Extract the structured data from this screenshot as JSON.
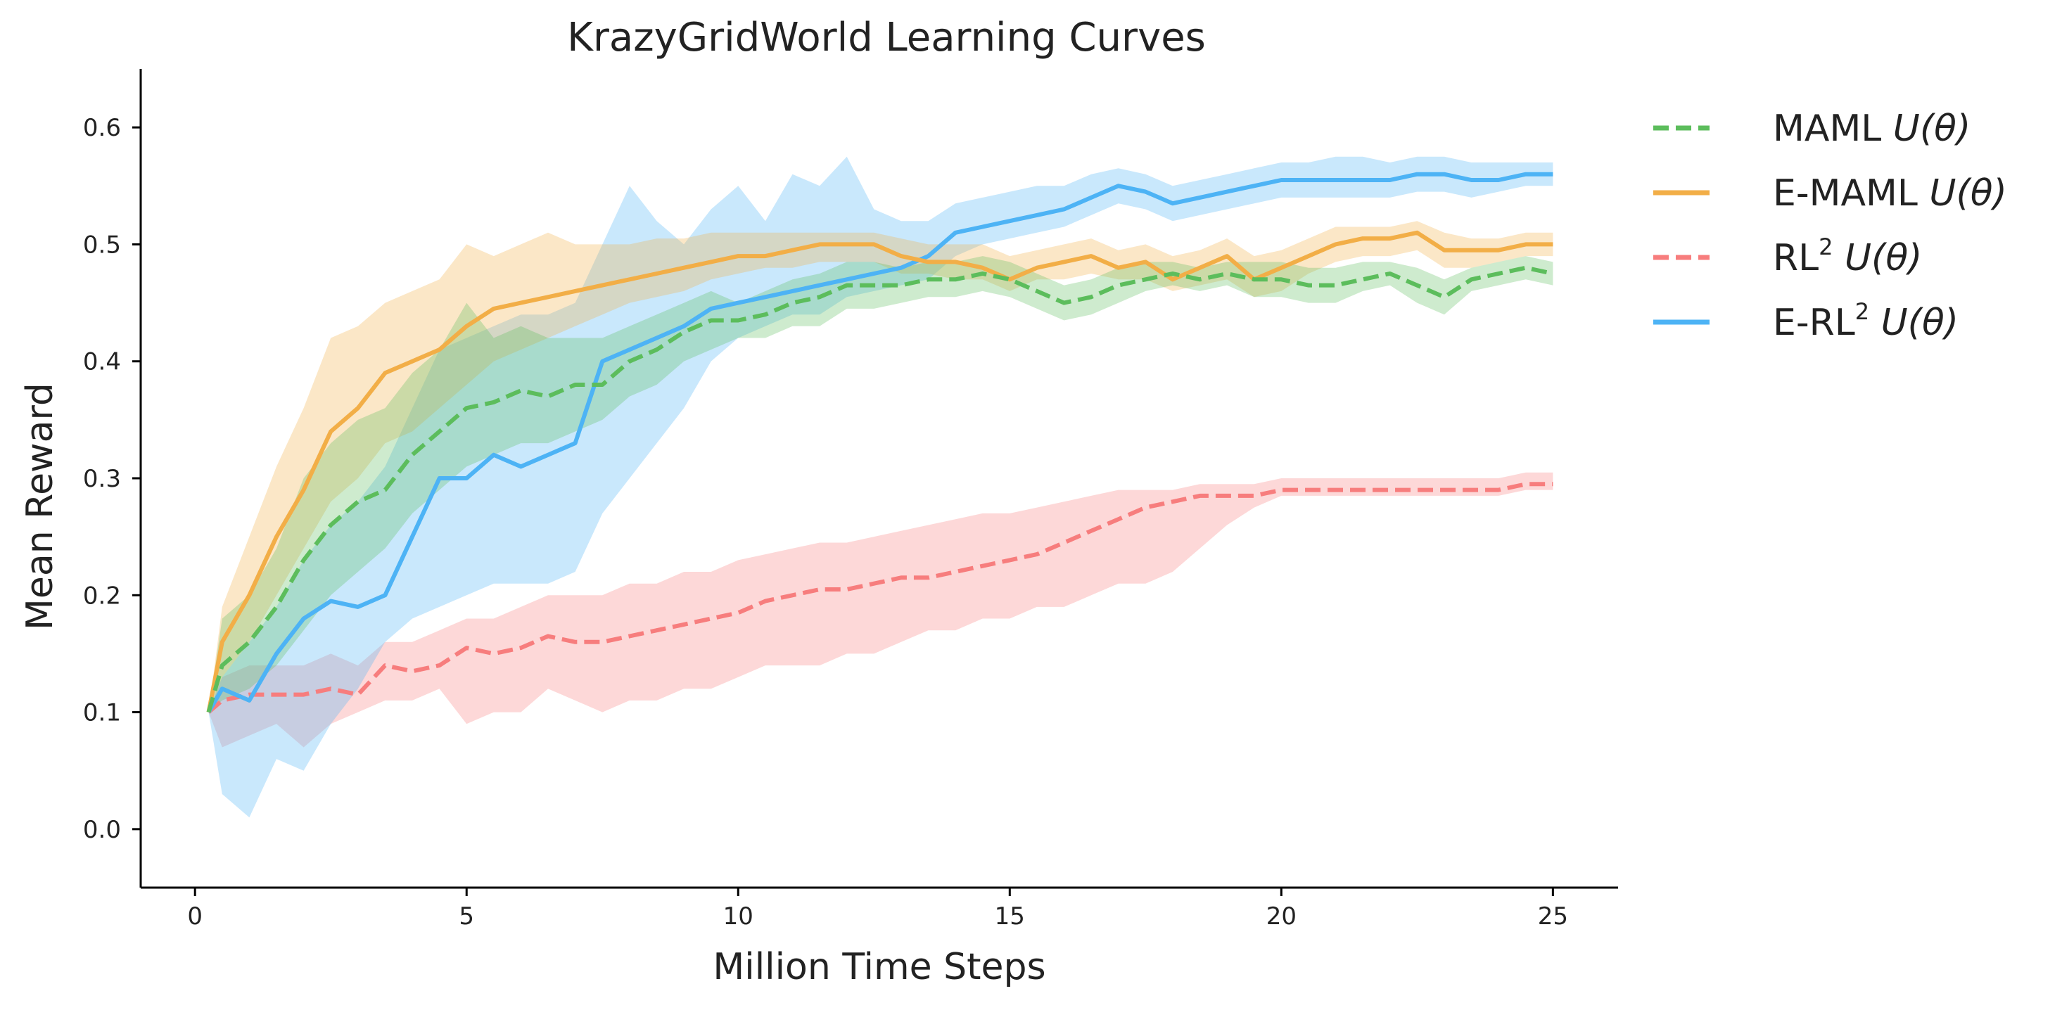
{
  "chart_data": {
    "type": "line",
    "title": "KrazyGridWorld Learning Curves",
    "xlabel": "Million Time Steps",
    "ylabel": "Mean Reward",
    "xlim": [
      -1,
      26.2
    ],
    "ylim": [
      -0.05,
      0.65
    ],
    "xticks": [
      0,
      5,
      10,
      15,
      20,
      25
    ],
    "yticks": [
      0.0,
      0.1,
      0.2,
      0.3,
      0.4,
      0.5,
      0.6
    ],
    "legend_position": "outside-top-right",
    "grid": false,
    "x": [
      0.25,
      0.5,
      1,
      1.5,
      2,
      2.5,
      3,
      3.5,
      4,
      4.5,
      5,
      5.5,
      6,
      6.5,
      7,
      7.5,
      8,
      8.5,
      9,
      9.5,
      10,
      10.5,
      11,
      11.5,
      12,
      12.5,
      13,
      13.5,
      14,
      14.5,
      15,
      15.5,
      16,
      16.5,
      17,
      17.5,
      18,
      18.5,
      19,
      19.5,
      20,
      20.5,
      21,
      21.5,
      22,
      22.5,
      23,
      23.5,
      24,
      24.5,
      25
    ],
    "series": [
      {
        "name": "MAML",
        "sup": "",
        "theta": "U(θ)",
        "color": "#5cbd5c",
        "dash": "dashed",
        "mean": [
          0.1,
          0.14,
          0.16,
          0.19,
          0.23,
          0.26,
          0.28,
          0.29,
          0.32,
          0.34,
          0.36,
          0.365,
          0.375,
          0.37,
          0.38,
          0.38,
          0.4,
          0.41,
          0.425,
          0.435,
          0.435,
          0.44,
          0.45,
          0.455,
          0.465,
          0.465,
          0.465,
          0.47,
          0.47,
          0.475,
          0.47,
          0.46,
          0.45,
          0.455,
          0.465,
          0.47,
          0.475,
          0.47,
          0.475,
          0.47,
          0.47,
          0.465,
          0.465,
          0.47,
          0.475,
          0.465,
          0.455,
          0.47,
          0.475,
          0.48,
          0.475
        ],
        "lower": [
          0.1,
          0.11,
          0.12,
          0.14,
          0.17,
          0.2,
          0.22,
          0.24,
          0.27,
          0.29,
          0.31,
          0.32,
          0.33,
          0.33,
          0.34,
          0.35,
          0.37,
          0.38,
          0.4,
          0.41,
          0.42,
          0.42,
          0.43,
          0.43,
          0.445,
          0.445,
          0.45,
          0.455,
          0.455,
          0.46,
          0.455,
          0.445,
          0.435,
          0.44,
          0.45,
          0.46,
          0.465,
          0.46,
          0.465,
          0.455,
          0.455,
          0.45,
          0.45,
          0.46,
          0.465,
          0.45,
          0.44,
          0.46,
          0.465,
          0.47,
          0.465
        ],
        "upper": [
          0.1,
          0.18,
          0.2,
          0.24,
          0.3,
          0.33,
          0.35,
          0.36,
          0.39,
          0.41,
          0.45,
          0.42,
          0.43,
          0.42,
          0.42,
          0.42,
          0.43,
          0.44,
          0.45,
          0.46,
          0.45,
          0.46,
          0.47,
          0.475,
          0.485,
          0.485,
          0.48,
          0.485,
          0.485,
          0.49,
          0.485,
          0.475,
          0.465,
          0.47,
          0.48,
          0.485,
          0.485,
          0.48,
          0.485,
          0.485,
          0.485,
          0.48,
          0.48,
          0.485,
          0.485,
          0.48,
          0.47,
          0.48,
          0.485,
          0.49,
          0.485
        ]
      },
      {
        "name": "E-MAML",
        "sup": "",
        "theta": "U(θ)",
        "color": "#f2ae47",
        "dash": "solid",
        "mean": [
          0.1,
          0.16,
          0.2,
          0.25,
          0.29,
          0.34,
          0.36,
          0.39,
          0.4,
          0.41,
          0.43,
          0.445,
          0.45,
          0.455,
          0.46,
          0.465,
          0.47,
          0.475,
          0.48,
          0.485,
          0.49,
          0.49,
          0.495,
          0.5,
          0.5,
          0.5,
          0.49,
          0.485,
          0.485,
          0.48,
          0.47,
          0.48,
          0.485,
          0.49,
          0.48,
          0.485,
          0.47,
          0.48,
          0.49,
          0.47,
          0.48,
          0.49,
          0.5,
          0.505,
          0.505,
          0.51,
          0.495,
          0.495,
          0.495,
          0.5,
          0.5
        ],
        "lower": [
          0.1,
          0.13,
          0.16,
          0.2,
          0.24,
          0.28,
          0.3,
          0.33,
          0.34,
          0.36,
          0.38,
          0.4,
          0.41,
          0.42,
          0.43,
          0.44,
          0.45,
          0.455,
          0.46,
          0.47,
          0.475,
          0.48,
          0.48,
          0.485,
          0.485,
          0.485,
          0.475,
          0.475,
          0.47,
          0.47,
          0.46,
          0.47,
          0.47,
          0.475,
          0.47,
          0.47,
          0.46,
          0.465,
          0.47,
          0.455,
          0.46,
          0.475,
          0.485,
          0.49,
          0.49,
          0.495,
          0.48,
          0.48,
          0.485,
          0.49,
          0.49
        ],
        "upper": [
          0.1,
          0.19,
          0.25,
          0.31,
          0.36,
          0.42,
          0.43,
          0.45,
          0.46,
          0.47,
          0.5,
          0.49,
          0.5,
          0.51,
          0.5,
          0.5,
          0.5,
          0.505,
          0.505,
          0.51,
          0.51,
          0.51,
          0.51,
          0.51,
          0.51,
          0.51,
          0.505,
          0.5,
          0.5,
          0.5,
          0.49,
          0.495,
          0.5,
          0.505,
          0.495,
          0.5,
          0.49,
          0.495,
          0.505,
          0.49,
          0.495,
          0.505,
          0.515,
          0.515,
          0.515,
          0.52,
          0.51,
          0.505,
          0.505,
          0.51,
          0.51
        ]
      },
      {
        "name": "RL",
        "sup": "2",
        "theta": "U(θ)",
        "color": "#f77d7d",
        "dash": "dashed",
        "mean": [
          0.1,
          0.11,
          0.115,
          0.115,
          0.115,
          0.12,
          0.115,
          0.14,
          0.135,
          0.14,
          0.155,
          0.15,
          0.155,
          0.165,
          0.16,
          0.16,
          0.165,
          0.17,
          0.175,
          0.18,
          0.185,
          0.195,
          0.2,
          0.205,
          0.205,
          0.21,
          0.215,
          0.215,
          0.22,
          0.225,
          0.23,
          0.235,
          0.245,
          0.255,
          0.265,
          0.275,
          0.28,
          0.285,
          0.285,
          0.285,
          0.29,
          0.29,
          0.29,
          0.29,
          0.29,
          0.29,
          0.29,
          0.29,
          0.29,
          0.295,
          0.295
        ],
        "lower": [
          0.1,
          0.07,
          0.08,
          0.09,
          0.07,
          0.09,
          0.1,
          0.11,
          0.11,
          0.12,
          0.09,
          0.1,
          0.1,
          0.12,
          0.11,
          0.1,
          0.11,
          0.11,
          0.12,
          0.12,
          0.13,
          0.14,
          0.14,
          0.14,
          0.15,
          0.15,
          0.16,
          0.17,
          0.17,
          0.18,
          0.18,
          0.19,
          0.19,
          0.2,
          0.21,
          0.21,
          0.22,
          0.24,
          0.26,
          0.275,
          0.285,
          0.285,
          0.285,
          0.285,
          0.285,
          0.285,
          0.285,
          0.285,
          0.285,
          0.29,
          0.29
        ],
        "upper": [
          0.1,
          0.13,
          0.14,
          0.14,
          0.14,
          0.15,
          0.14,
          0.16,
          0.16,
          0.17,
          0.18,
          0.18,
          0.19,
          0.2,
          0.2,
          0.2,
          0.21,
          0.21,
          0.22,
          0.22,
          0.23,
          0.235,
          0.24,
          0.245,
          0.245,
          0.25,
          0.255,
          0.26,
          0.265,
          0.27,
          0.27,
          0.275,
          0.28,
          0.285,
          0.29,
          0.29,
          0.29,
          0.295,
          0.295,
          0.295,
          0.3,
          0.3,
          0.3,
          0.3,
          0.3,
          0.3,
          0.3,
          0.3,
          0.3,
          0.305,
          0.305
        ]
      },
      {
        "name": "E-RL",
        "sup": "2",
        "theta": "U(θ)",
        "color": "#4db3f5",
        "dash": "solid",
        "mean": [
          0.1,
          0.12,
          0.11,
          0.15,
          0.18,
          0.195,
          0.19,
          0.2,
          0.25,
          0.3,
          0.3,
          0.32,
          0.31,
          0.32,
          0.33,
          0.4,
          0.41,
          0.42,
          0.43,
          0.445,
          0.45,
          0.455,
          0.46,
          0.465,
          0.47,
          0.475,
          0.48,
          0.49,
          0.51,
          0.515,
          0.52,
          0.525,
          0.53,
          0.54,
          0.55,
          0.545,
          0.535,
          0.54,
          0.545,
          0.55,
          0.555,
          0.555,
          0.555,
          0.555,
          0.555,
          0.56,
          0.56,
          0.555,
          0.555,
          0.56,
          0.56
        ],
        "lower": [
          0.1,
          0.03,
          0.01,
          0.06,
          0.05,
          0.09,
          0.12,
          0.16,
          0.18,
          0.19,
          0.2,
          0.21,
          0.21,
          0.21,
          0.22,
          0.27,
          0.3,
          0.33,
          0.36,
          0.4,
          0.42,
          0.43,
          0.44,
          0.44,
          0.455,
          0.46,
          0.465,
          0.47,
          0.49,
          0.5,
          0.505,
          0.51,
          0.515,
          0.525,
          0.535,
          0.53,
          0.52,
          0.525,
          0.53,
          0.535,
          0.54,
          0.54,
          0.54,
          0.54,
          0.54,
          0.545,
          0.545,
          0.54,
          0.545,
          0.55,
          0.55
        ],
        "upper": [
          0.1,
          0.13,
          0.16,
          0.19,
          0.23,
          0.26,
          0.28,
          0.31,
          0.36,
          0.41,
          0.42,
          0.43,
          0.44,
          0.44,
          0.45,
          0.5,
          0.55,
          0.52,
          0.5,
          0.53,
          0.55,
          0.52,
          0.56,
          0.55,
          0.575,
          0.53,
          0.52,
          0.52,
          0.535,
          0.54,
          0.545,
          0.55,
          0.55,
          0.56,
          0.565,
          0.56,
          0.55,
          0.555,
          0.56,
          0.565,
          0.57,
          0.57,
          0.575,
          0.575,
          0.57,
          0.575,
          0.575,
          0.57,
          0.57,
          0.57,
          0.57
        ]
      }
    ]
  }
}
